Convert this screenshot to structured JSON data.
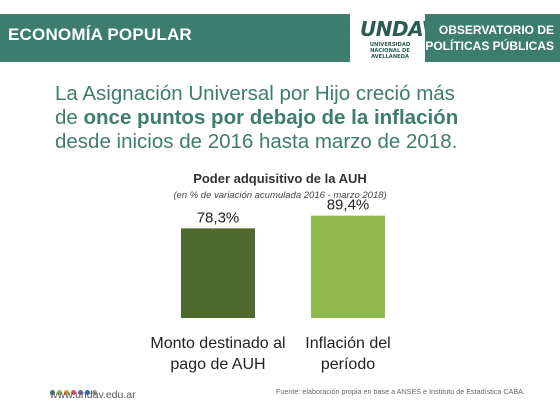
{
  "header": {
    "section": "ECONOMÍA POPULAR",
    "logo": {
      "word": "UNDAV",
      "sub_lines": [
        "UNIVERSIDAD",
        "NACIONAL DE",
        "AVELLANEDA"
      ]
    },
    "observatory_lines": [
      "OBSERVATORIO DE",
      "POLÍTICAS PÚBLICAS"
    ]
  },
  "headline": {
    "line1": "La Asignación Universal por Hijo creció más",
    "line2_prefix": "de ",
    "line2_highlight": "once puntos por debajo de la inflación",
    "line3": "desde inicios de 2016 hasta marzo de 2018."
  },
  "chart_data": {
    "type": "bar",
    "title": "Poder adquisitivo de la AUH",
    "subtitle": "(en % de variación acumulada 2016 - marzo 2018)",
    "categories": [
      "Monto destinado al pago de AUH",
      "Inflación del período"
    ],
    "category_lines": [
      [
        "Monto destinado al",
        "pago de AUH"
      ],
      [
        "Inflación del",
        "período"
      ]
    ],
    "values": [
      78.3,
      89.4
    ],
    "value_labels": [
      "78,3%",
      "89,4%"
    ],
    "colors": [
      "#4f6a2e",
      "#8fb84f"
    ],
    "grid": false,
    "legend": "none"
  },
  "footer": {
    "url": "www.undav.edu.ar",
    "source": "Fuente: elaboración propia en base a ANSES e Instituto de Estadística CABA.",
    "dot_colors": [
      "#3d7d6d",
      "#8fb84f",
      "#e0a030",
      "#d9534f",
      "#7b5ea7",
      "#2c6fb0",
      "#999999"
    ]
  },
  "colors": {
    "brand": "#3d7d6d",
    "headline": "#3d7d6d"
  }
}
